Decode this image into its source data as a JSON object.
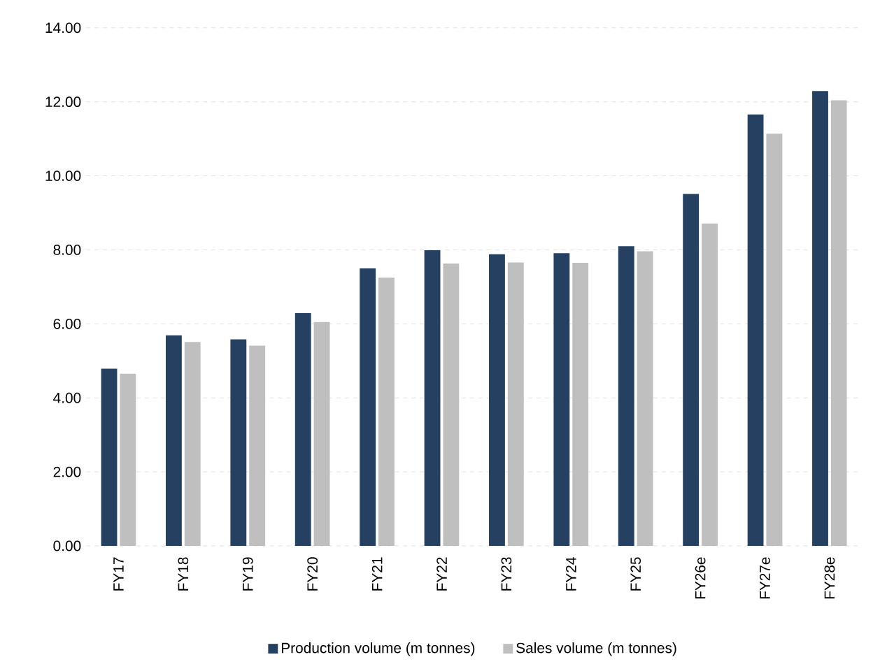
{
  "chart_data": {
    "type": "bar",
    "categories": [
      "FY17",
      "FY18",
      "FY19",
      "FY20",
      "FY21",
      "FY22",
      "FY23",
      "FY24",
      "FY25",
      "FY26e",
      "FY27e",
      "FY28e"
    ],
    "series": [
      {
        "name": "Production volume (m tonnes)",
        "color": "#264061",
        "values": [
          4.79,
          5.69,
          5.58,
          6.29,
          7.5,
          7.99,
          7.88,
          7.91,
          8.1,
          9.51,
          11.66,
          12.29
        ]
      },
      {
        "name": "Sales volume (m tonnes)",
        "color": "#bfbfbf",
        "values": [
          4.65,
          5.51,
          5.41,
          6.05,
          7.25,
          7.63,
          7.66,
          7.65,
          7.96,
          8.71,
          11.14,
          12.04
        ]
      }
    ],
    "ylim": [
      0,
      14
    ],
    "yticks": [
      {
        "value": 0,
        "label": "0.00"
      },
      {
        "value": 2,
        "label": "2.00"
      },
      {
        "value": 4,
        "label": "4.00"
      },
      {
        "value": 6,
        "label": "6.00"
      },
      {
        "value": 8,
        "label": "8.00"
      },
      {
        "value": 10,
        "label": "10.00"
      },
      {
        "value": 12,
        "label": "12.00"
      },
      {
        "value": 14,
        "label": "14.00"
      }
    ],
    "grid": "y",
    "legend": "bottom"
  }
}
